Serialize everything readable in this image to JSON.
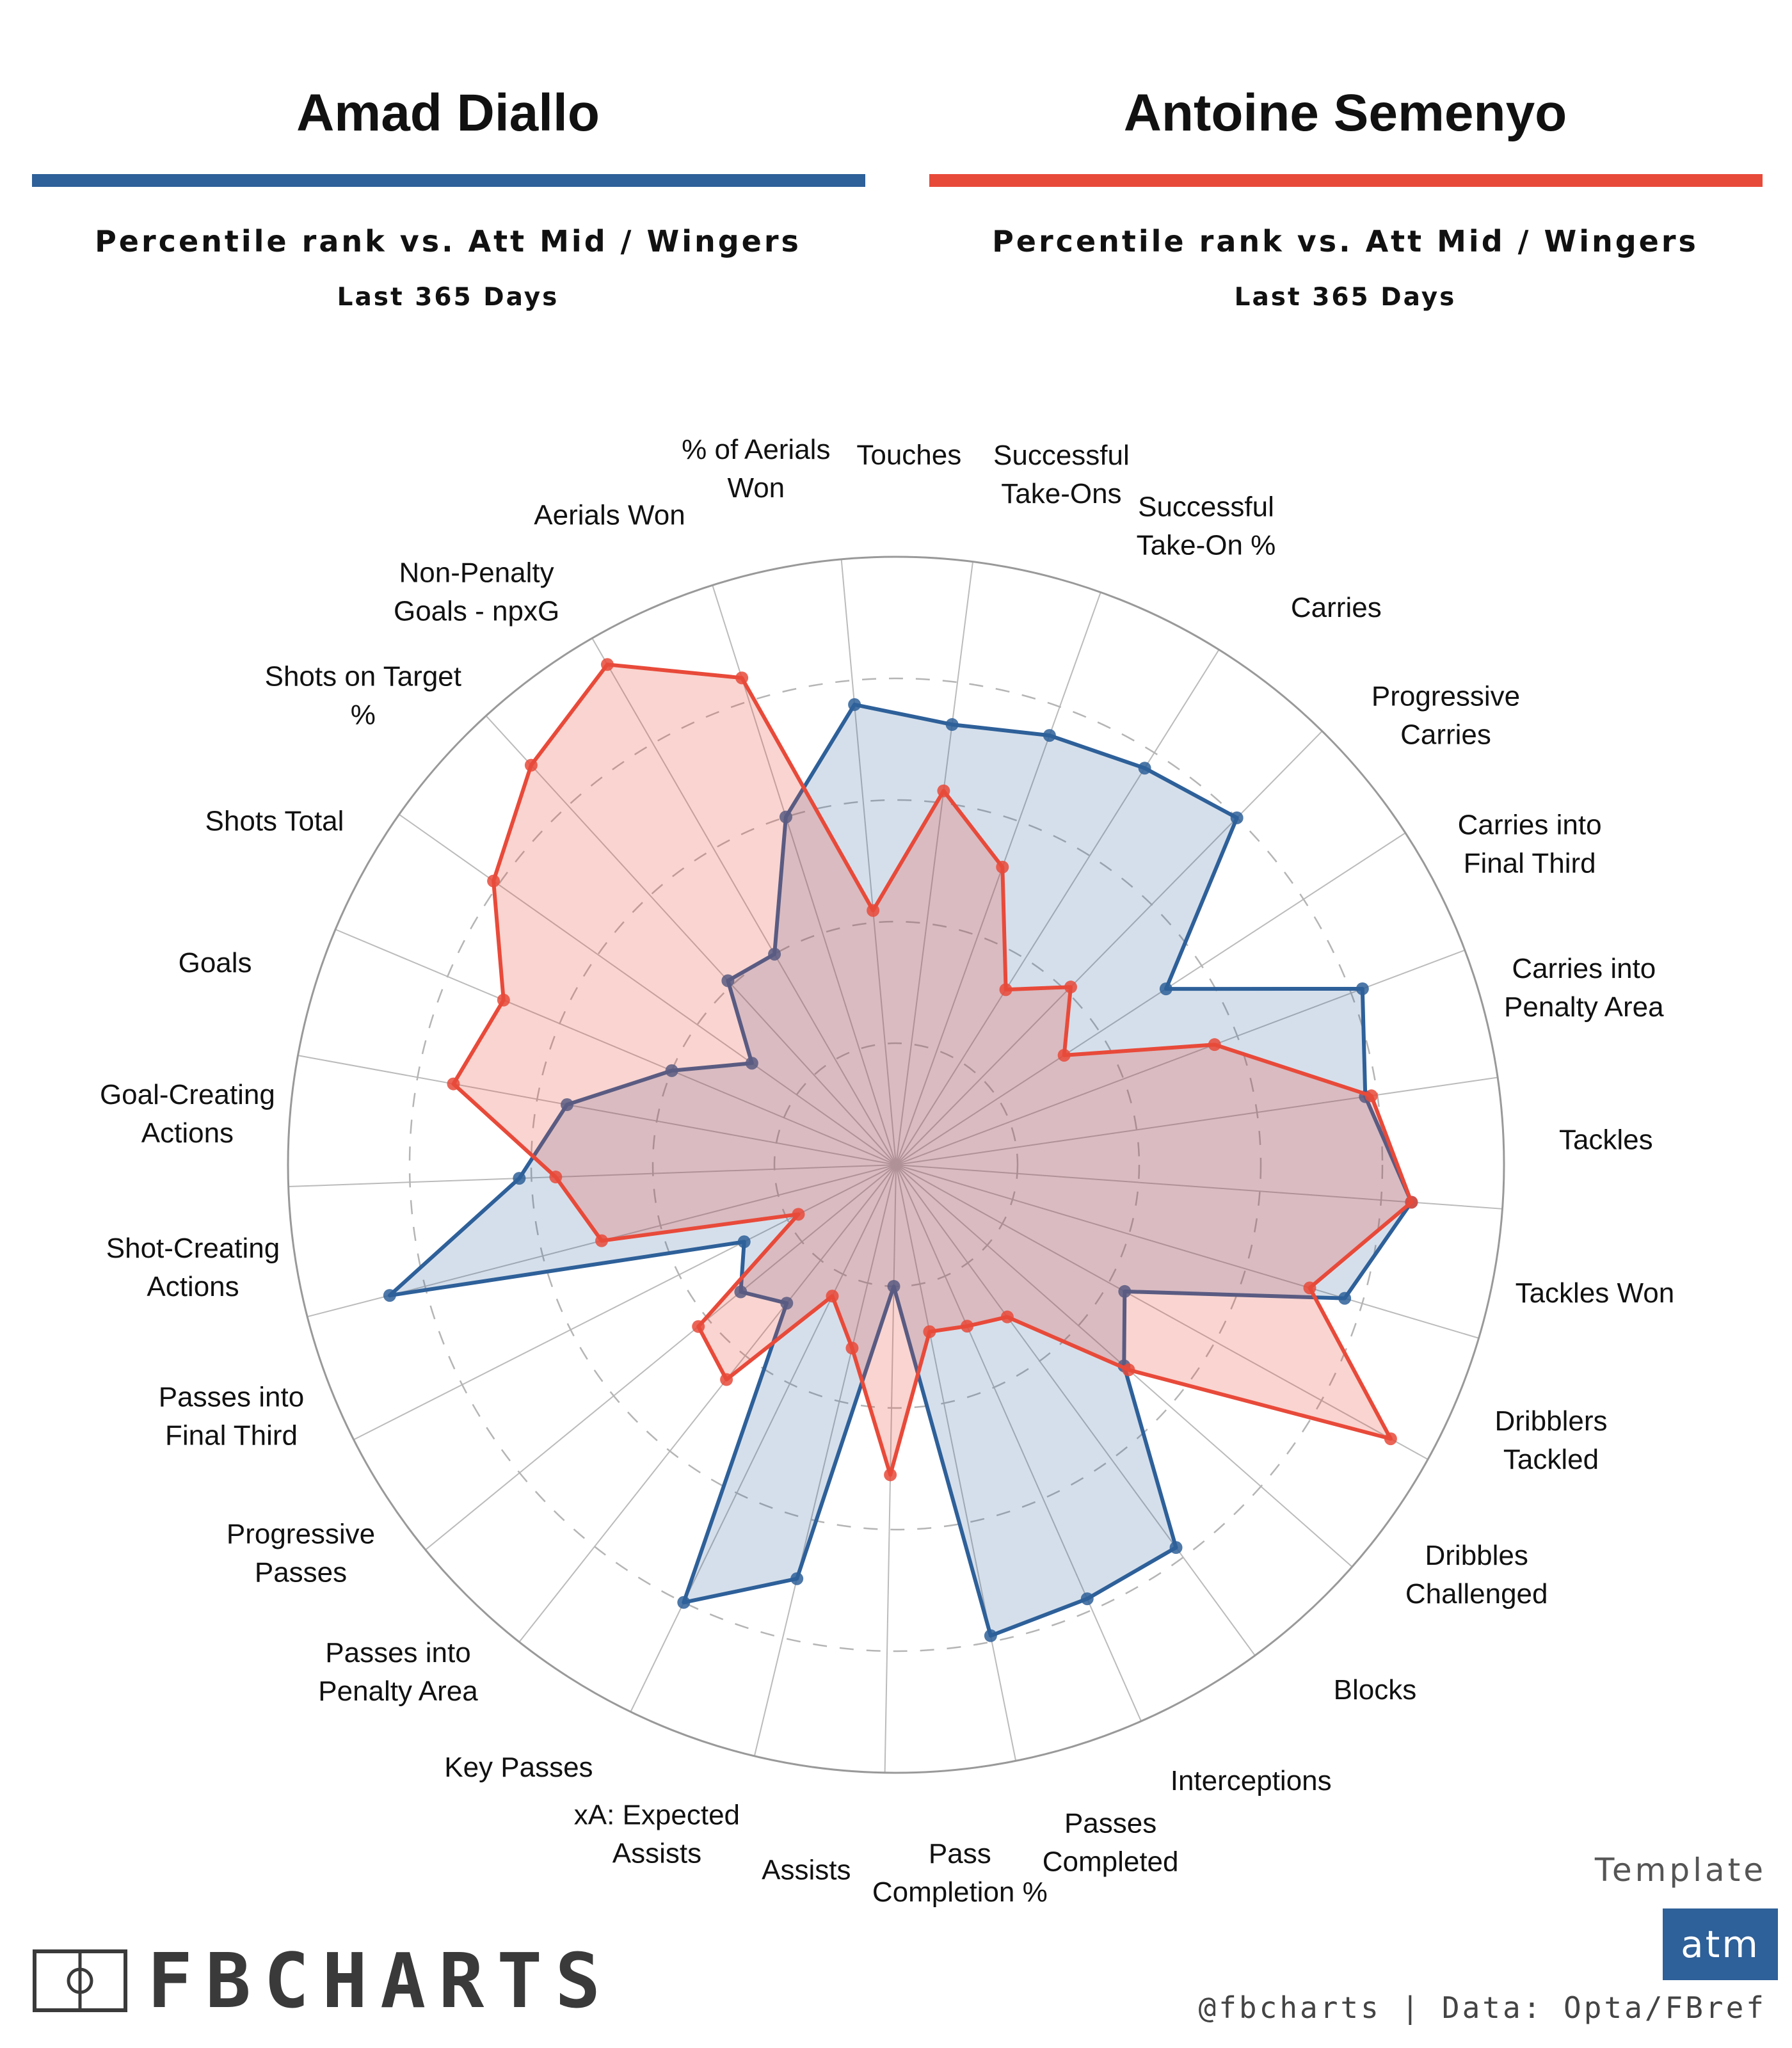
{
  "colors": {
    "left_player": "#2e6099",
    "right_player": "#e84a3a",
    "badge": "#2e6099",
    "grid": "#bbbbbb"
  },
  "header": {
    "left": {
      "name": "Amad Diallo",
      "subtitle": "Percentile rank vs. Att Mid / Wingers",
      "period": "Last 365 Days"
    },
    "right": {
      "name": "Antoine Semenyo",
      "subtitle": "Percentile rank vs. Att Mid / Wingers",
      "period": "Last 365 Days"
    }
  },
  "chart_data": {
    "type": "radar",
    "title": "Amad Diallo vs Antoine Semenyo",
    "range": [
      0,
      100
    ],
    "gridlines": [
      20,
      40,
      60,
      80,
      100
    ],
    "categories": [
      [
        "Touches"
      ],
      [
        "Successful",
        "Take-Ons"
      ],
      [
        "Successful",
        "Take-On %"
      ],
      [
        "Carries"
      ],
      [
        "Progressive",
        "Carries"
      ],
      [
        "Carries into",
        "Final Third"
      ],
      [
        "Carries into",
        "Penalty Area"
      ],
      [
        "Tackles"
      ],
      [
        "Tackles Won"
      ],
      [
        "Dribblers",
        "Tackled"
      ],
      [
        "Dribbles",
        "Challenged"
      ],
      [
        "Blocks"
      ],
      [
        "Interceptions"
      ],
      [
        "Passes",
        "Completed"
      ],
      [
        "Pass",
        "Completion %"
      ],
      [
        "Assists"
      ],
      [
        "xA: Expected",
        "Assists"
      ],
      [
        "Key Passes"
      ],
      [
        "Passes into",
        "Penalty Area"
      ],
      [
        "Progressive",
        "Passes"
      ],
      [
        "Passes into",
        "Final Third"
      ],
      [
        "Shot-Creating",
        "Actions"
      ],
      [
        "Goal-Creating",
        "Actions"
      ],
      [
        "Goals"
      ],
      [
        "Shots Total"
      ],
      [
        "Shots on Target",
        "%"
      ],
      [
        "Non-Penalty",
        "Goals - npxG"
      ],
      [
        "Aerials Won"
      ],
      [
        "% of Aerials",
        "Won"
      ]
    ],
    "series": [
      {
        "name": "Amad Diallo",
        "values": [
          76,
          73,
          75,
          77,
          80,
          53,
          82,
          78,
          85,
          77,
          43,
          50,
          78,
          78,
          79,
          20,
          70,
          80,
          29,
          33,
          28,
          86,
          62,
          55,
          40,
          29,
          41,
          40,
          60
        ]
      },
      {
        "name": "Antoine Semenyo",
        "values": [
          42,
          62,
          52,
          34,
          41,
          33,
          56,
          79,
          85,
          71,
          93,
          51,
          31,
          29,
          28,
          51,
          31,
          24,
          45,
          42,
          18,
          50,
          56,
          74,
          70,
          81,
          89,
          95,
          84
        ]
      }
    ]
  },
  "footer": {
    "brand": "FBCHARTS",
    "template_label": "Template",
    "template_badge": "atm",
    "credit": "@fbcharts | Data: Opta/FBref"
  }
}
